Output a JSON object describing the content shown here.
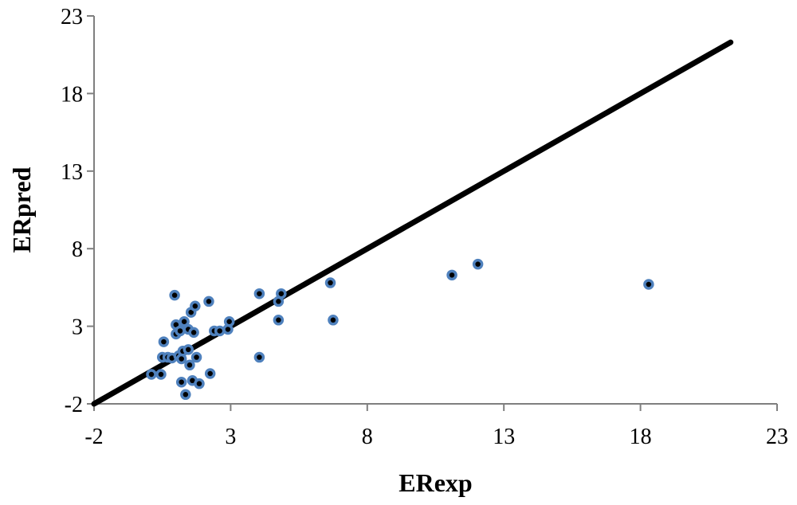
{
  "chart_data": {
    "type": "scatter",
    "title": "",
    "xlabel": "ERexp",
    "ylabel": "ERpred",
    "xlim": [
      -2,
      23
    ],
    "ylim": [
      -2,
      23
    ],
    "xticks": [
      -2,
      3,
      8,
      13,
      18,
      23
    ],
    "yticks": [
      -2,
      3,
      8,
      13,
      18,
      23
    ],
    "xtick_labels": [
      "-2",
      "3",
      "8",
      "13",
      "18",
      "23"
    ],
    "ytick_labels": [
      "-2",
      "3",
      "8",
      "13",
      "18",
      "23"
    ],
    "grid": false,
    "legend": "none",
    "reference_line": {
      "x": [
        -2,
        21.3
      ],
      "y": [
        -2,
        21.3
      ],
      "color": "#000000"
    },
    "marker_fill": "#000000",
    "marker_edge": "#4f81bd",
    "points": [
      [
        0.1,
        -0.1
      ],
      [
        0.45,
        -0.1
      ],
      [
        0.5,
        1.0
      ],
      [
        0.55,
        2.0
      ],
      [
        0.7,
        1.0
      ],
      [
        0.85,
        0.95
      ],
      [
        0.95,
        5.0
      ],
      [
        1.0,
        2.5
      ],
      [
        1.0,
        3.1
      ],
      [
        1.1,
        1.1
      ],
      [
        1.15,
        2.7
      ],
      [
        1.2,
        0.9
      ],
      [
        1.2,
        -0.6
      ],
      [
        1.25,
        1.4
      ],
      [
        1.3,
        3.3
      ],
      [
        1.35,
        -1.4
      ],
      [
        1.45,
        1.5
      ],
      [
        1.45,
        2.8
      ],
      [
        1.5,
        0.5
      ],
      [
        1.55,
        3.9
      ],
      [
        1.6,
        -0.5
      ],
      [
        1.65,
        2.6
      ],
      [
        1.7,
        4.3
      ],
      [
        1.75,
        1.0
      ],
      [
        1.85,
        -0.7
      ],
      [
        2.2,
        4.6
      ],
      [
        2.25,
        -0.05
      ],
      [
        2.4,
        2.7
      ],
      [
        2.6,
        2.7
      ],
      [
        2.9,
        2.8
      ],
      [
        2.95,
        3.3
      ],
      [
        4.05,
        5.1
      ],
      [
        4.05,
        1.0
      ],
      [
        4.75,
        4.6
      ],
      [
        4.75,
        3.4
      ],
      [
        4.85,
        5.1
      ],
      [
        6.65,
        5.8
      ],
      [
        6.75,
        3.4
      ],
      [
        11.1,
        6.3
      ],
      [
        12.05,
        7.0
      ],
      [
        18.3,
        5.7
      ]
    ]
  }
}
